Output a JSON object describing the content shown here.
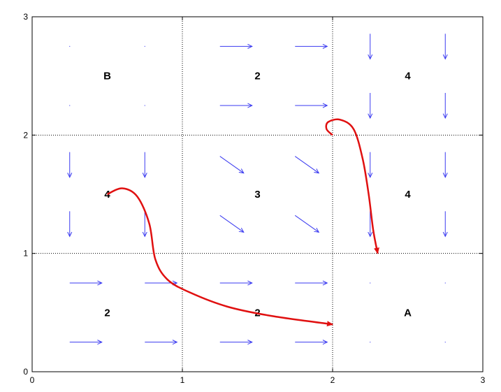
{
  "chart_data": {
    "type": "diagram",
    "xlim": [
      0,
      3
    ],
    "ylim": [
      0,
      3
    ],
    "x_ticks": [
      "0",
      "1",
      "2",
      "3"
    ],
    "y_ticks": [
      "0",
      "1",
      "2",
      "3"
    ],
    "grid": "dotted at 1 and 2",
    "cell_labels": [
      {
        "col": 0,
        "row": 2,
        "text": "B"
      },
      {
        "col": 1,
        "row": 2,
        "text": "2"
      },
      {
        "col": 2,
        "row": 2,
        "text": "4"
      },
      {
        "col": 0,
        "row": 1,
        "text": "4"
      },
      {
        "col": 1,
        "row": 1,
        "text": "3"
      },
      {
        "col": 2,
        "row": 1,
        "text": "4"
      },
      {
        "col": 0,
        "row": 0,
        "text": "2"
      },
      {
        "col": 1,
        "row": 0,
        "text": "2"
      },
      {
        "col": 2,
        "row": 0,
        "text": "A"
      }
    ],
    "vector_field": {
      "sample_offsets": [
        0.25,
        0.75
      ],
      "cells": [
        {
          "col": 0,
          "row": 2,
          "dir": "none"
        },
        {
          "col": 1,
          "row": 2,
          "dir": "right"
        },
        {
          "col": 2,
          "row": 2,
          "dir": "down"
        },
        {
          "col": 0,
          "row": 1,
          "dir": "down"
        },
        {
          "col": 1,
          "row": 1,
          "dir": "down-right"
        },
        {
          "col": 2,
          "row": 1,
          "dir": "down"
        },
        {
          "col": 0,
          "row": 0,
          "dir": "right"
        },
        {
          "col": 1,
          "row": 0,
          "dir": "right"
        },
        {
          "col": 2,
          "row": 0,
          "dir": "none"
        }
      ],
      "color": "#3a3af0"
    },
    "trajectories": [
      {
        "color": "#e01010",
        "points": [
          [
            0.5,
            1.5
          ],
          [
            0.6,
            1.55
          ],
          [
            0.7,
            1.48
          ],
          [
            0.78,
            1.25
          ],
          [
            0.82,
            0.95
          ],
          [
            0.9,
            0.78
          ],
          [
            1.05,
            0.67
          ],
          [
            1.3,
            0.55
          ],
          [
            1.6,
            0.47
          ],
          [
            2.0,
            0.4
          ]
        ]
      },
      {
        "color": "#e01010",
        "points": [
          [
            2.0,
            2.0
          ],
          [
            1.96,
            2.05
          ],
          [
            1.97,
            2.11
          ],
          [
            2.05,
            2.13
          ],
          [
            2.14,
            2.05
          ],
          [
            2.2,
            1.8
          ],
          [
            2.24,
            1.5
          ],
          [
            2.27,
            1.2
          ],
          [
            2.3,
            1.0
          ]
        ]
      }
    ]
  }
}
